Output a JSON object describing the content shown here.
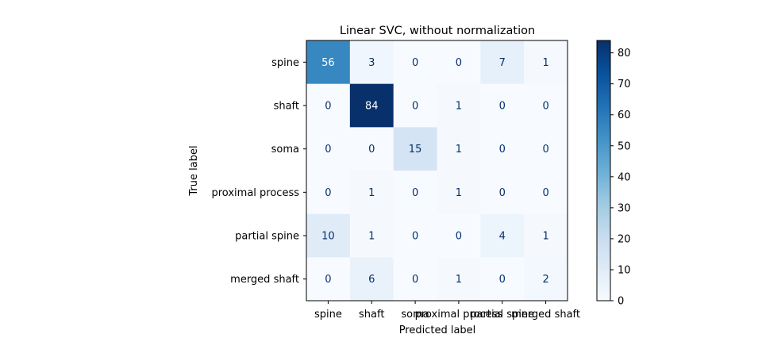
{
  "chart_data": {
    "type": "heatmap",
    "title": "Linear SVC, without normalization",
    "xlabel": "Predicted label",
    "ylabel": "True label",
    "x_categories": [
      "spine",
      "shaft",
      "soma",
      "proximal process",
      "partial spine",
      "merged shaft"
    ],
    "y_categories": [
      "spine",
      "shaft",
      "soma",
      "proximal process",
      "partial spine",
      "merged shaft"
    ],
    "values": [
      [
        56,
        3,
        0,
        0,
        7,
        1
      ],
      [
        0,
        84,
        0,
        1,
        0,
        0
      ],
      [
        0,
        0,
        15,
        1,
        0,
        0
      ],
      [
        0,
        1,
        0,
        1,
        0,
        0
      ],
      [
        10,
        1,
        0,
        0,
        4,
        1
      ],
      [
        0,
        6,
        0,
        1,
        0,
        2
      ]
    ],
    "colormap": "Blues",
    "vmin": 0,
    "vmax": 84,
    "colorbar_ticks": [
      0,
      10,
      20,
      30,
      40,
      50,
      60,
      70,
      80
    ],
    "text_dark_color": "#08306b",
    "text_light_color": "#ffffff",
    "grid": false
  }
}
